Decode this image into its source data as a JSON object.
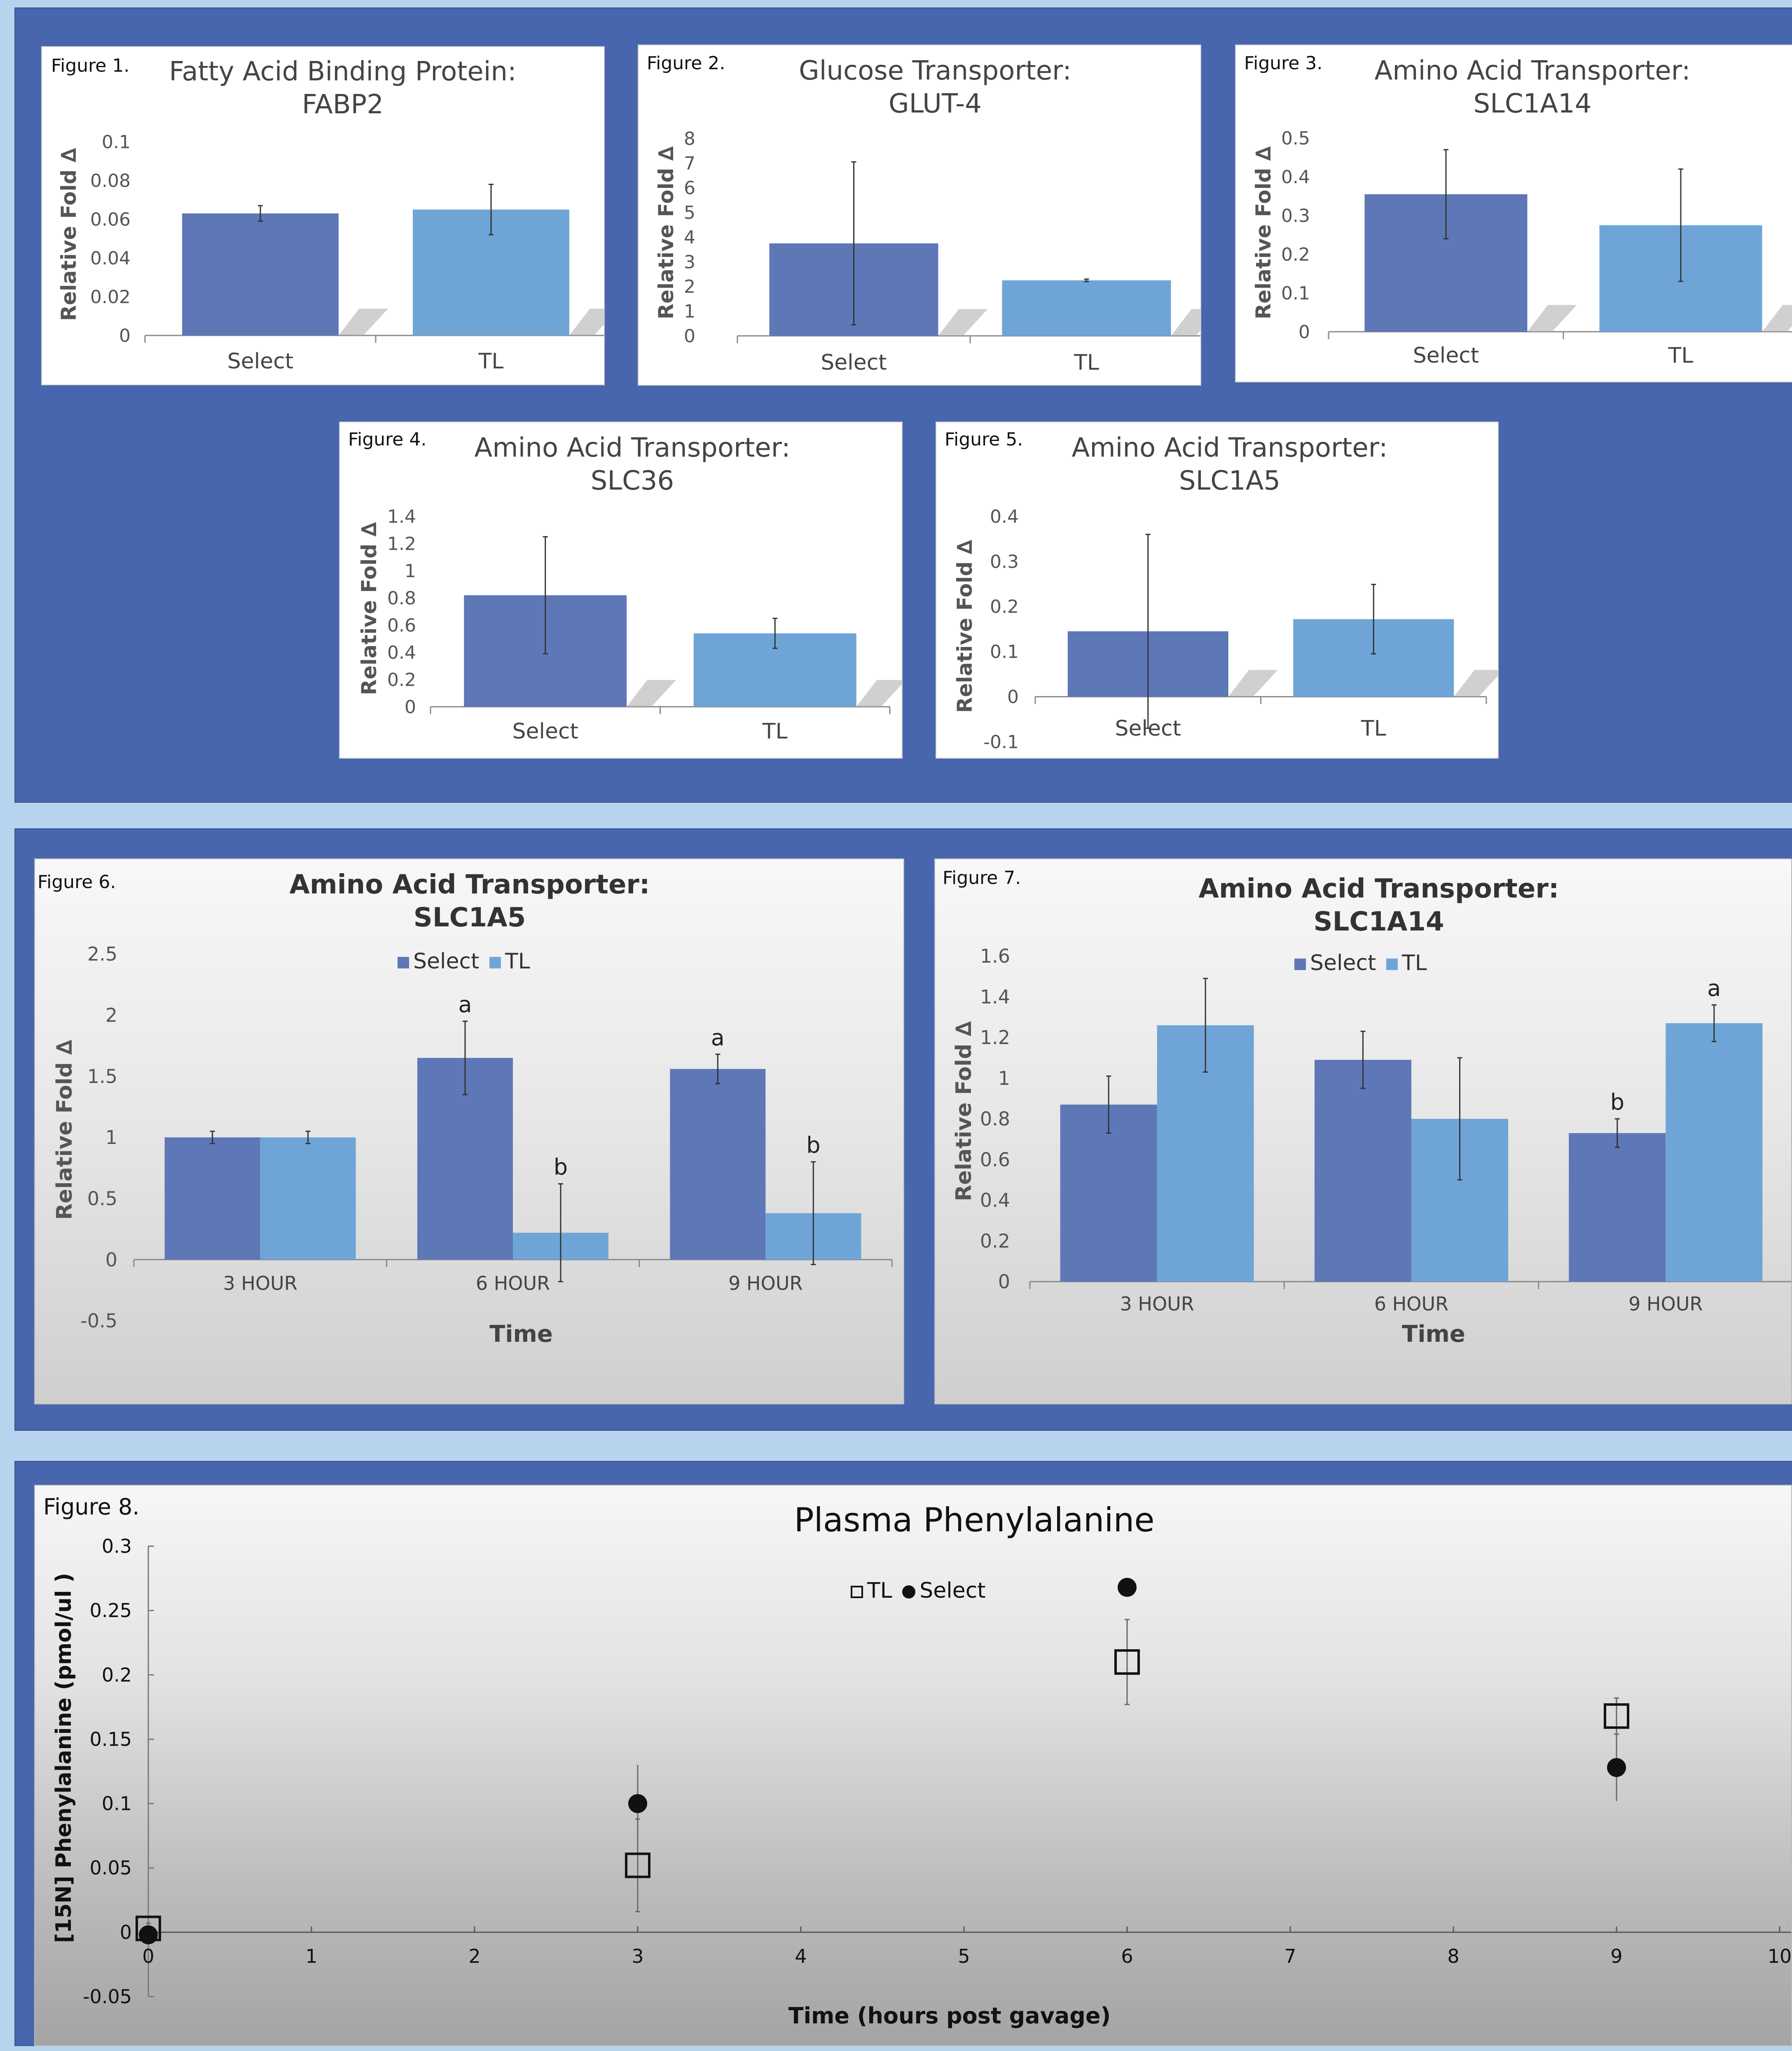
{
  "colors": {
    "select": "#5e77b7",
    "tl": "#6fa5d6",
    "panel": "#4866ad",
    "background": "#b7d3ee"
  },
  "charts": {
    "fig1": {
      "label": "Figure 1.",
      "title": "Fatty Acid Binding Protein:\nFABP2",
      "ylabel": "Relative Fold ∆",
      "xlabel": ""
    },
    "fig2": {
      "label": "Figure 2.",
      "title": "Glucose Transporter:\nGLUT-4",
      "ylabel": "Relative Fold ∆",
      "xlabel": ""
    },
    "fig3": {
      "label": "Figure 3.",
      "title": "Amino Acid Transporter:\nSLC1A14",
      "ylabel": "Relative Fold ∆",
      "xlabel": ""
    },
    "fig4": {
      "label": "Figure 4.",
      "title": "Amino Acid Transporter:\nSLC36",
      "ylabel": "Relative Fold ∆",
      "xlabel": ""
    },
    "fig5": {
      "label": "Figure 5.",
      "title": "Amino Acid Transporter:\nSLC1A5",
      "ylabel": "Relative Fold ∆",
      "xlabel": ""
    },
    "fig6": {
      "label": "Figure 6.",
      "title": "Amino Acid Transporter:\nSLC1A5",
      "ylabel": "Relative Fold ∆",
      "xlabel": "Time",
      "legend": [
        "Select",
        "TL"
      ]
    },
    "fig7": {
      "label": "Figure 7.",
      "title": "Amino Acid Transporter:\nSLC1A14",
      "ylabel": "Relative Fold ∆",
      "xlabel": "Time",
      "legend": [
        "Select",
        "TL"
      ]
    },
    "fig8": {
      "label": "Figure 8.",
      "title": "Plasma  Phenylalanine",
      "ylabel": "[15N] Phenylalanine (pmol/ul )",
      "xlabel": "Time (hours post gavage)",
      "legend": [
        "TL",
        "Select"
      ]
    }
  },
  "chart_data": [
    {
      "id": "fig1",
      "type": "bar",
      "categories": [
        "Select",
        "TL"
      ],
      "values": [
        0.063,
        0.065
      ],
      "errors": [
        0.004,
        0.013
      ],
      "ylim": [
        0,
        0.1
      ],
      "yticks": [
        "0",
        "0.02",
        "0.04",
        "0.06",
        "0.08",
        "0.1"
      ],
      "ytick_values": [
        0,
        0.02,
        0.04,
        0.06,
        0.08,
        0.1
      ],
      "title": "Fatty Acid Binding Protein: FABP2",
      "ylabel": "Relative Fold ∆"
    },
    {
      "id": "fig2",
      "type": "bar",
      "categories": [
        "Select",
        "TL"
      ],
      "values": [
        3.75,
        2.25
      ],
      "errors": [
        3.3,
        0.05
      ],
      "ylim": [
        0,
        8
      ],
      "yticks": [
        "0",
        "1",
        "2",
        "3",
        "4",
        "5",
        "6",
        "7",
        "8"
      ],
      "ytick_values": [
        0,
        1,
        2,
        3,
        4,
        5,
        6,
        7,
        8
      ],
      "title": "Glucose Transporter: GLUT-4",
      "ylabel": "Relative Fold ∆"
    },
    {
      "id": "fig3",
      "type": "bar",
      "categories": [
        "Select",
        "TL"
      ],
      "values": [
        0.355,
        0.275
      ],
      "errors": [
        0.115,
        0.145
      ],
      "ylim": [
        0,
        0.5
      ],
      "yticks": [
        "0",
        "0.1",
        "0.2",
        "0.3",
        "0.4",
        "0.5"
      ],
      "ytick_values": [
        0,
        0.1,
        0.2,
        0.3,
        0.4,
        0.5
      ],
      "title": "Amino Acid Transporter: SLC1A14",
      "ylabel": "Relative Fold ∆"
    },
    {
      "id": "fig4",
      "type": "bar",
      "categories": [
        "Select",
        "TL"
      ],
      "values": [
        0.82,
        0.54
      ],
      "errors": [
        0.43,
        0.11
      ],
      "ylim": [
        0,
        1.4
      ],
      "yticks": [
        "0",
        "0.2",
        "0.4",
        "0.6",
        "0.8",
        "1",
        "1.2",
        "1.4"
      ],
      "ytick_values": [
        0,
        0.2,
        0.4,
        0.6,
        0.8,
        1,
        1.2,
        1.4
      ],
      "title": "Amino Acid Transporter: SLC36",
      "ylabel": "Relative Fold ∆"
    },
    {
      "id": "fig5",
      "type": "bar",
      "categories": [
        "Select",
        "TL"
      ],
      "values": [
        0.145,
        0.172
      ],
      "errors": [
        0.215,
        0.077
      ],
      "ylim": [
        -0.1,
        0.4
      ],
      "yticks": [
        "-0.1",
        "0",
        "0.1",
        "0.2",
        "0.3",
        "0.4"
      ],
      "ytick_values": [
        -0.1,
        0,
        0.1,
        0.2,
        0.3,
        0.4
      ],
      "title": "Amino Acid Transporter: SLC1A5",
      "ylabel": "Relative Fold ∆"
    },
    {
      "id": "fig6",
      "type": "bar",
      "categories": [
        "3 HOUR",
        "6 HOUR",
        "9 HOUR"
      ],
      "series": [
        {
          "name": "Select",
          "values": [
            1.0,
            1.65,
            1.56
          ],
          "errors": [
            0.05,
            0.3,
            0.12
          ],
          "labels": [
            "",
            "a",
            "a"
          ]
        },
        {
          "name": "TL",
          "values": [
            1.0,
            0.22,
            0.38
          ],
          "errors": [
            0.05,
            0.4,
            0.42
          ],
          "labels": [
            "",
            "b",
            "b"
          ]
        }
      ],
      "ylim": [
        -0.5,
        2.5
      ],
      "yticks": [
        "-0.5",
        "0",
        "0.5",
        "1",
        "1.5",
        "2",
        "2.5"
      ],
      "ytick_values": [
        -0.5,
        0,
        0.5,
        1,
        1.5,
        2,
        2.5
      ],
      "title": "Amino Acid Transporter: SLC1A5",
      "xlabel": "Time",
      "ylabel": "Relative Fold ∆",
      "legend": "top-center"
    },
    {
      "id": "fig7",
      "type": "bar",
      "categories": [
        "3 HOUR",
        "6 HOUR",
        "9 HOUR"
      ],
      "series": [
        {
          "name": "Select",
          "values": [
            0.87,
            1.09,
            0.73
          ],
          "errors": [
            0.14,
            0.14,
            0.07
          ],
          "labels": [
            "",
            "",
            "b"
          ]
        },
        {
          "name": "TL",
          "values": [
            1.26,
            0.8,
            1.27
          ],
          "errors": [
            0.23,
            0.3,
            0.09
          ],
          "labels": [
            "",
            "",
            "a"
          ]
        }
      ],
      "ylim": [
        0,
        1.6
      ],
      "yticks": [
        "0",
        "0.2",
        "0.4",
        "0.6",
        "0.8",
        "1",
        "1.2",
        "1.4",
        "1.6"
      ],
      "ytick_values": [
        0,
        0.2,
        0.4,
        0.6,
        0.8,
        1,
        1.2,
        1.4,
        1.6
      ],
      "title": "Amino Acid Transporter: SLC1A14",
      "xlabel": "Time",
      "ylabel": "Relative Fold ∆",
      "legend": "top-center"
    },
    {
      "id": "fig8",
      "type": "scatter",
      "series": [
        {
          "name": "TL",
          "marker": "open-square",
          "x": [
            0,
            3,
            6,
            9
          ],
          "y": [
            0.003,
            0.052,
            0.21,
            0.168
          ],
          "errors": [
            0.004,
            0.036,
            0.033,
            0.014
          ]
        },
        {
          "name": "Select",
          "marker": "filled-circle",
          "x": [
            0,
            3,
            6,
            9
          ],
          "y": [
            -0.002,
            0.1,
            0.268,
            0.128
          ],
          "errors": [
            0.004,
            0.03,
            0.0,
            0.026
          ]
        }
      ],
      "xlim": [
        0,
        10
      ],
      "xticks": [
        "0",
        "1",
        "2",
        "3",
        "4",
        "5",
        "6",
        "7",
        "8",
        "9",
        "10"
      ],
      "xtick_values": [
        0,
        1,
        2,
        3,
        4,
        5,
        6,
        7,
        8,
        9,
        10
      ],
      "ylim": [
        -0.05,
        0.3
      ],
      "yticks": [
        "-0.05",
        "0",
        "0.05",
        "0.1",
        "0.15",
        "0.2",
        "0.25",
        "0.3"
      ],
      "ytick_values": [
        -0.05,
        0,
        0.05,
        0.1,
        0.15,
        0.2,
        0.25,
        0.3
      ],
      "title": "Plasma  Phenylalanine",
      "xlabel": "Time (hours post gavage)",
      "ylabel": "[15N] Phenylalanine (pmol/ul )",
      "legend": "top-center"
    }
  ]
}
